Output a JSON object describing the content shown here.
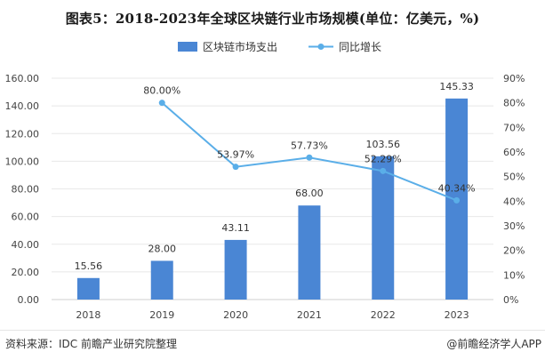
{
  "title": "图表5：2018-2023年全球区块链行业市场规模(单位：亿美元，%)",
  "footer": {
    "source": "资料来源：IDC 前瞻产业研究院整理",
    "brand": "@前瞻经济学人APP"
  },
  "colors": {
    "bar": "#4a86d4",
    "line": "#5aaee8",
    "grid": "#e8e8e8"
  },
  "chart_data": {
    "type": "bar",
    "title": "图表5：2018-2023年全球区块链行业市场规模(单位：亿美元，%)",
    "categories": [
      "2018",
      "2019",
      "2020",
      "2021",
      "2022",
      "2023"
    ],
    "series": [
      {
        "name": "区块链市场支出",
        "type": "bar",
        "axis": "left",
        "values": [
          15.56,
          28.0,
          43.11,
          68.0,
          103.56,
          145.33
        ],
        "labels": [
          "15.56",
          "28.00",
          "43.11",
          "68.00",
          "103.56",
          "145.33"
        ]
      },
      {
        "name": "同比增长",
        "type": "line",
        "axis": "right",
        "values": [
          null,
          80.0,
          53.97,
          57.73,
          52.29,
          40.34
        ],
        "labels": [
          "",
          "80.00%",
          "53.97%",
          "57.73%",
          "52.29%",
          "40.34%"
        ]
      }
    ],
    "y_left": {
      "min": 0,
      "max": 160,
      "ticks": [
        "0.00",
        "20.00",
        "40.00",
        "60.00",
        "80.00",
        "100.00",
        "120.00",
        "140.00",
        "160.00"
      ]
    },
    "y_right": {
      "min": 0,
      "max": 90,
      "ticks": [
        "0%",
        "10%",
        "20%",
        "30%",
        "40%",
        "50%",
        "60%",
        "70%",
        "80%",
        "90%"
      ]
    },
    "grid": true,
    "legend": "top-right"
  }
}
